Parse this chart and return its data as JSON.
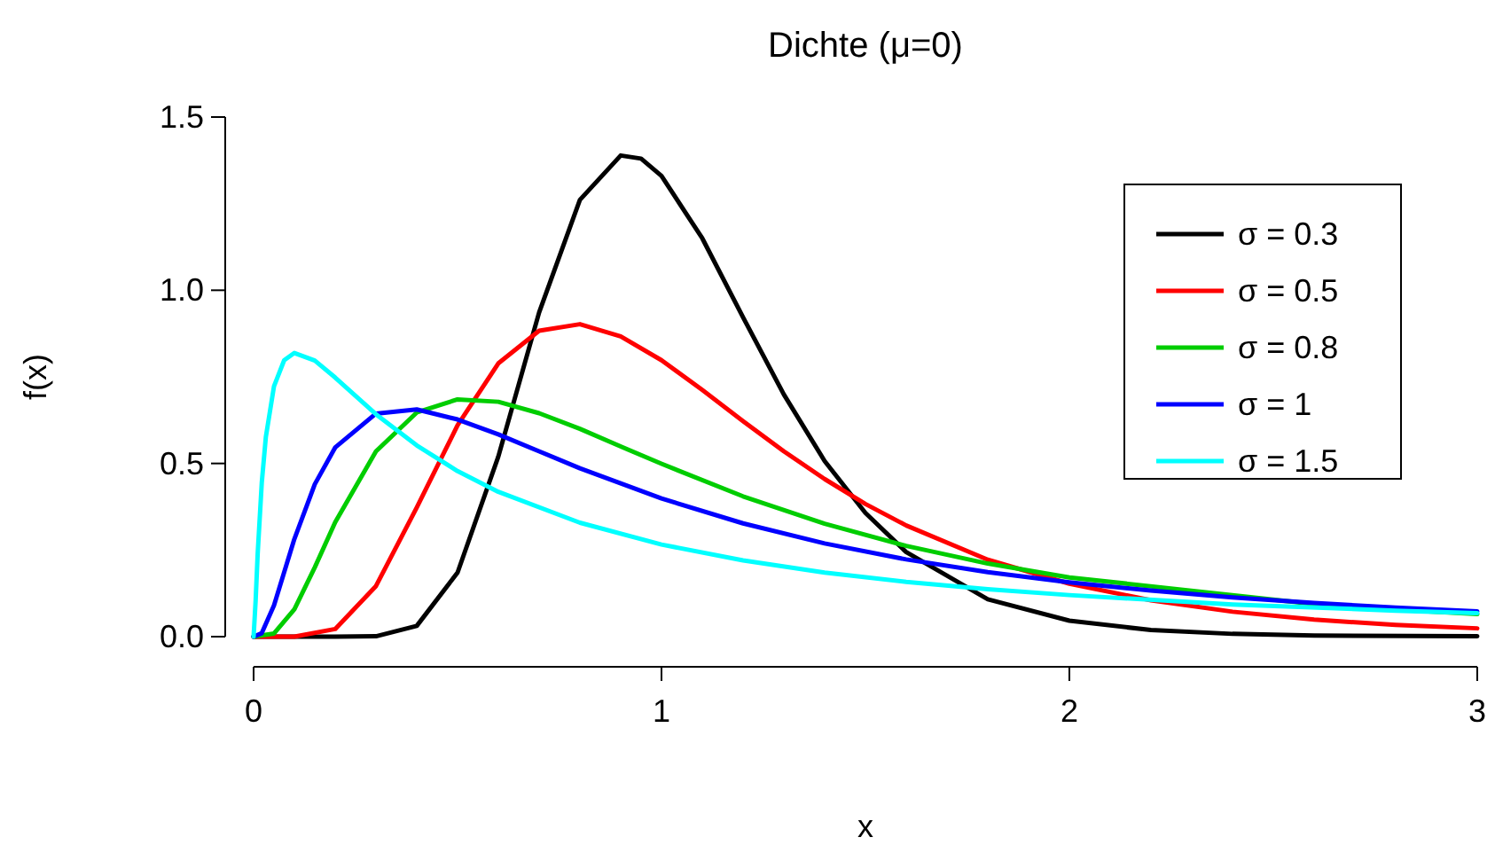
{
  "chart_data": {
    "type": "line",
    "title": "Dichte (μ=0)",
    "xlabel": "x",
    "ylabel": "f(x)",
    "xlim": [
      0,
      3
    ],
    "ylim": [
      0,
      1.5
    ],
    "xticks": [
      0,
      1,
      2,
      3
    ],
    "yticks": [
      {
        "value": 0,
        "label": "0.0"
      },
      {
        "value": 0.5,
        "label": "0.5"
      },
      {
        "value": 1,
        "label": "1.0"
      },
      {
        "value": 1.5,
        "label": "1.5"
      }
    ],
    "grid": false,
    "legend": "top right",
    "marker": "none",
    "line_style": "solid",
    "series": [
      {
        "name": "σ = 0.3",
        "color": "#000000",
        "x": [
          0,
          0.2,
          0.3,
          0.4,
          0.5,
          0.6,
          0.7,
          0.8,
          0.9,
          0.95,
          1.0,
          1.1,
          1.2,
          1.3,
          1.4,
          1.5,
          1.6,
          1.8,
          2.0,
          2.2,
          2.4,
          2.6,
          3.0
        ],
        "values": [
          0,
          0,
          0.001,
          0.031,
          0.185,
          0.52,
          0.936,
          1.261,
          1.389,
          1.38,
          1.33,
          1.15,
          0.922,
          0.699,
          0.507,
          0.357,
          0.244,
          0.108,
          0.046,
          0.019,
          0.008,
          0.003,
          0.001
        ]
      },
      {
        "name": "σ = 0.5",
        "color": "#ff0000",
        "x": [
          0,
          0.1,
          0.2,
          0.3,
          0.4,
          0.5,
          0.6,
          0.7,
          0.8,
          0.9,
          1.0,
          1.1,
          1.2,
          1.3,
          1.4,
          1.5,
          1.6,
          1.8,
          2.0,
          2.2,
          2.4,
          2.6,
          2.8,
          3.0
        ],
        "values": [
          0,
          0,
          0.022,
          0.146,
          0.373,
          0.61,
          0.789,
          0.883,
          0.902,
          0.867,
          0.798,
          0.712,
          0.622,
          0.535,
          0.455,
          0.383,
          0.321,
          0.222,
          0.153,
          0.105,
          0.072,
          0.049,
          0.034,
          0.024
        ]
      },
      {
        "name": "σ = 0.8",
        "color": "#00cd00",
        "x": [
          0,
          0.05,
          0.1,
          0.15,
          0.2,
          0.3,
          0.4,
          0.5,
          0.6,
          0.7,
          0.8,
          0.9,
          1.0,
          1.2,
          1.4,
          1.6,
          1.8,
          2.0,
          2.6,
          2.8,
          3.0
        ],
        "values": [
          0,
          0.009,
          0.079,
          0.2,
          0.33,
          0.535,
          0.647,
          0.685,
          0.678,
          0.645,
          0.6,
          0.549,
          0.499,
          0.405,
          0.326,
          0.262,
          0.211,
          0.171,
          0.094,
          0.078,
          0.065
        ]
      },
      {
        "name": "σ = 1",
        "color": "#0000ff",
        "x": [
          0,
          0.02,
          0.05,
          0.1,
          0.15,
          0.2,
          0.3,
          0.4,
          0.5,
          0.6,
          0.7,
          0.8,
          1.0,
          1.2,
          1.4,
          1.6,
          1.8,
          2.0,
          2.2,
          2.4,
          2.6,
          2.8,
          3.0
        ],
        "values": [
          0,
          0.01,
          0.09,
          0.282,
          0.44,
          0.546,
          0.644,
          0.656,
          0.627,
          0.584,
          0.535,
          0.486,
          0.399,
          0.327,
          0.269,
          0.223,
          0.186,
          0.157,
          0.133,
          0.113,
          0.097,
          0.084,
          0.073
        ]
      },
      {
        "name": "σ = 1.5",
        "color": "#00ffff",
        "x": [
          0,
          0.005,
          0.01,
          0.02,
          0.03,
          0.05,
          0.075,
          0.1,
          0.15,
          0.2,
          0.3,
          0.4,
          0.5,
          0.6,
          0.8,
          1.0,
          1.2,
          1.4,
          1.6,
          1.8,
          2.0,
          2.4,
          2.8,
          3.0
        ],
        "values": [
          0,
          0.104,
          0.239,
          0.444,
          0.576,
          0.723,
          0.798,
          0.819,
          0.797,
          0.748,
          0.642,
          0.552,
          0.478,
          0.418,
          0.329,
          0.266,
          0.22,
          0.185,
          0.158,
          0.137,
          0.12,
          0.093,
          0.075,
          0.068
        ]
      }
    ]
  }
}
